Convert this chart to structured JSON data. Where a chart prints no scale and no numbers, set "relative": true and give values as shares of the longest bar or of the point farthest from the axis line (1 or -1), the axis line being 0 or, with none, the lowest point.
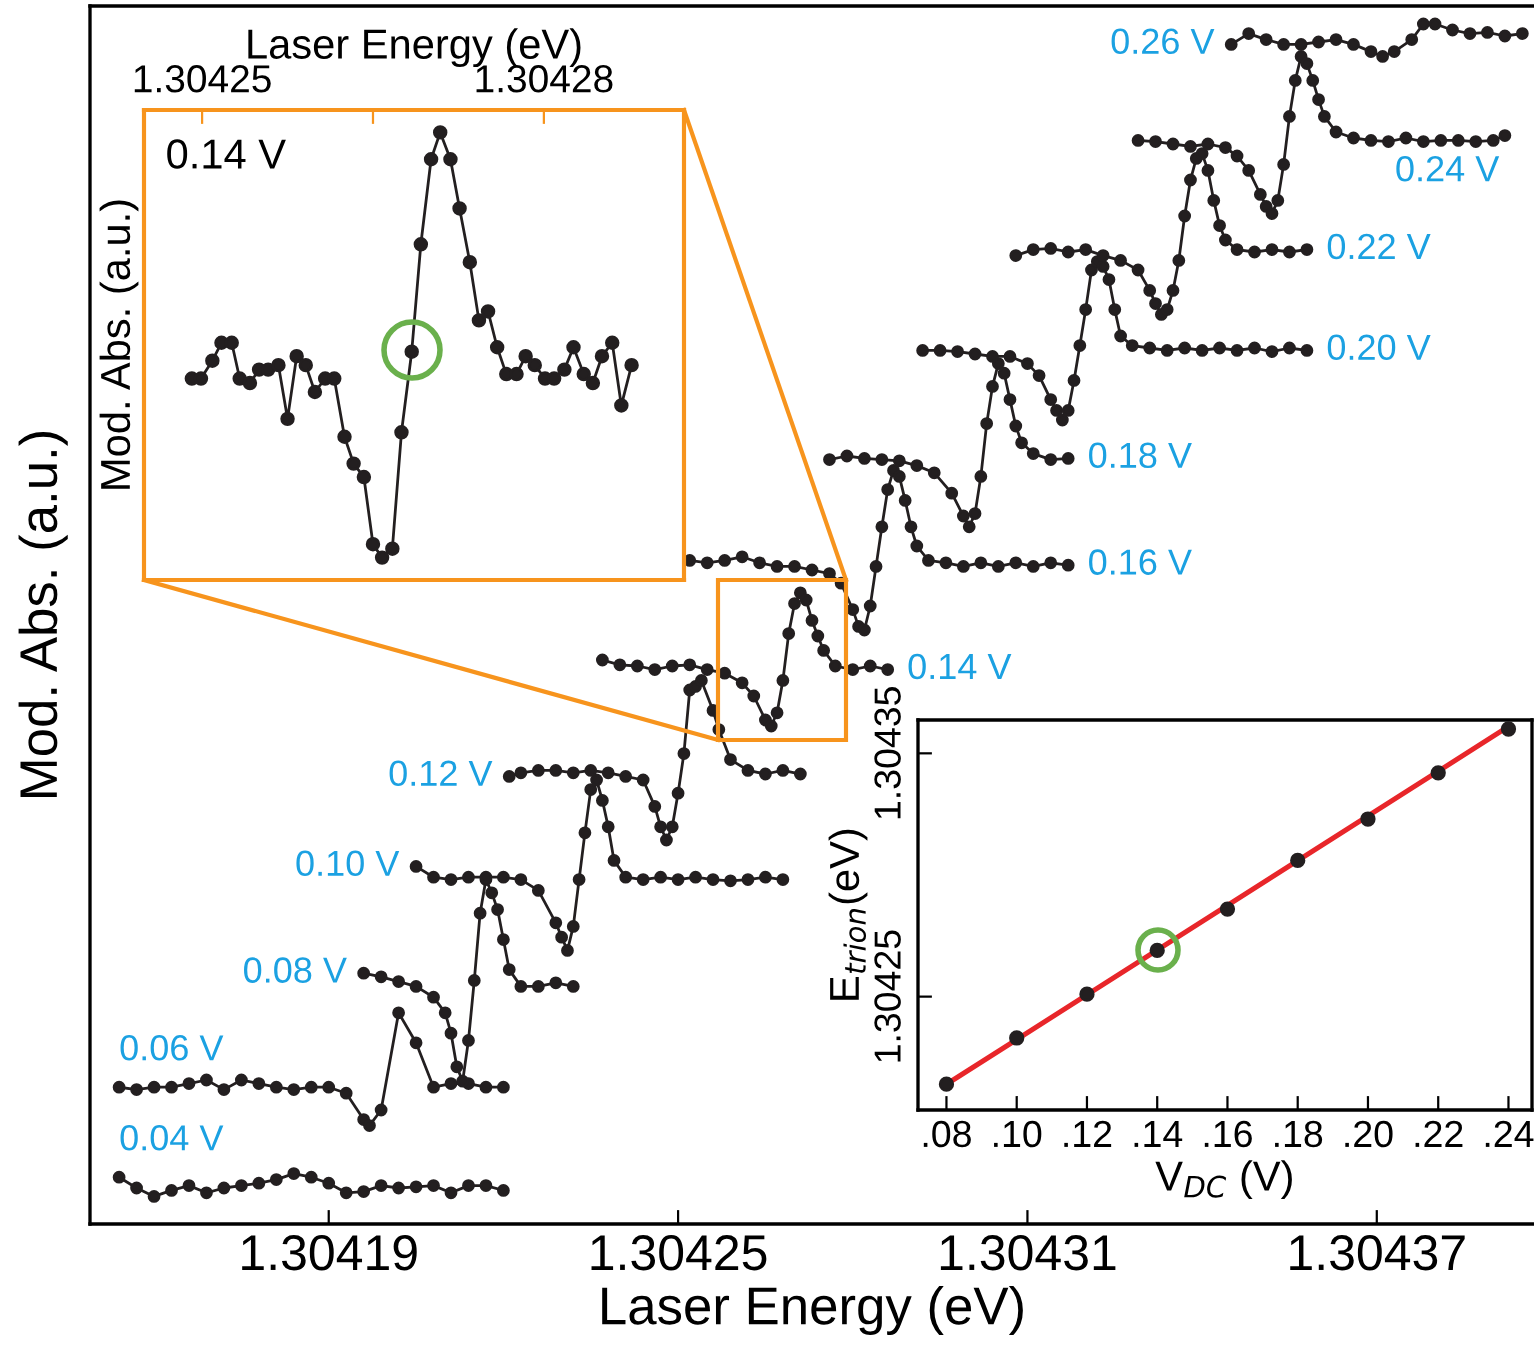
{
  "chart_data": [
    {
      "type": "line",
      "xlabel": "Laser Energy (eV)",
      "ylabel": "Mod. Abs. (a.u.)",
      "xlim": [
        1.304149,
        1.304397
      ],
      "xticks": [
        1.30419,
        1.30425,
        1.30431,
        1.30437
      ],
      "relative": true,
      "marker": "circle",
      "line_style": "solid",
      "tick_labels": "x",
      "series": [
        {
          "name": "0.04 V",
          "color": "#231f20",
          "x": [
            1.304154,
            1.304157,
            1.30416,
            1.304163,
            1.304166,
            1.304169,
            1.304172,
            1.304175,
            1.304178,
            1.304181,
            1.304184,
            1.304187,
            1.30419,
            1.304193,
            1.304196,
            1.304199,
            1.304202,
            1.304205,
            1.304208,
            1.304211,
            1.304214,
            1.304217,
            1.30422
          ],
          "values": [
            0.039,
            0.03,
            0.023,
            0.028,
            0.032,
            0.026,
            0.03,
            0.032,
            0.034,
            0.037,
            0.042,
            0.039,
            0.034,
            0.026,
            0.027,
            0.032,
            0.03,
            0.031,
            0.032,
            0.026,
            0.032,
            0.032,
            0.028
          ]
        },
        {
          "name": "0.06 V",
          "color": "#231f20",
          "x": [
            1.304154,
            1.304157,
            1.30416,
            1.304163,
            1.304166,
            1.304169,
            1.304172,
            1.304175,
            1.304178,
            1.304181,
            1.304184,
            1.304187,
            1.30419,
            1.304193,
            1.304196,
            1.304197,
            1.304199,
            1.304202,
            1.304205,
            1.304208,
            1.304211,
            1.304214,
            1.304217,
            1.30422
          ],
          "values": [
            0.114,
            0.112,
            0.114,
            0.114,
            0.117,
            0.12,
            0.112,
            0.12,
            0.117,
            0.114,
            0.112,
            0.114,
            0.114,
            0.109,
            0.087,
            0.082,
            0.095,
            0.176,
            0.151,
            0.114,
            0.117,
            0.117,
            0.114,
            0.114
          ]
        },
        {
          "name": "0.08 V",
          "color": "#231f20",
          "x": [
            1.304196,
            1.304199,
            1.304202,
            1.304205,
            1.304208,
            1.30421,
            1.304211,
            1.304212,
            1.304213,
            1.304214,
            1.304215,
            1.304216,
            1.304217,
            1.304218,
            1.304219,
            1.30422,
            1.304221,
            1.304223,
            1.304226,
            1.304229,
            1.304232
          ],
          "values": [
            0.209,
            0.206,
            0.202,
            0.198,
            0.189,
            0.176,
            0.159,
            0.131,
            0.119,
            0.153,
            0.203,
            0.259,
            0.287,
            0.276,
            0.262,
            0.237,
            0.212,
            0.198,
            0.198,
            0.201,
            0.198
          ]
        },
        {
          "name": "0.10 V",
          "color": "#231f20",
          "x": [
            1.304205,
            1.304208,
            1.304211,
            1.304214,
            1.304217,
            1.30422,
            1.304223,
            1.304226,
            1.304229,
            1.30423,
            1.304231,
            1.304232,
            1.304233,
            1.304234,
            1.304235,
            1.304236,
            1.304237,
            1.304238,
            1.304239,
            1.304241,
            1.304244,
            1.304247,
            1.30425,
            1.304253,
            1.304256,
            1.304259,
            1.304262,
            1.304265,
            1.304268
          ],
          "values": [
            0.298,
            0.289,
            0.287,
            0.289,
            0.289,
            0.289,
            0.287,
            0.278,
            0.251,
            0.239,
            0.228,
            0.248,
            0.287,
            0.326,
            0.362,
            0.37,
            0.353,
            0.331,
            0.303,
            0.289,
            0.287,
            0.289,
            0.287,
            0.289,
            0.287,
            0.286,
            0.287,
            0.289,
            0.287
          ]
        },
        {
          "name": "0.12 V",
          "color": "#231f20",
          "x": [
            1.304221,
            1.304223,
            1.304226,
            1.304229,
            1.304232,
            1.304235,
            1.304238,
            1.304241,
            1.304244,
            1.304246,
            1.304247,
            1.304248,
            1.304249,
            1.30425,
            1.304251,
            1.304252,
            1.304253,
            1.304254,
            1.304256,
            1.304257,
            1.304259,
            1.304262,
            1.304265,
            1.304268,
            1.304271
          ],
          "values": [
            0.373,
            0.376,
            0.378,
            0.378,
            0.376,
            0.378,
            0.376,
            0.373,
            0.37,
            0.348,
            0.331,
            0.32,
            0.331,
            0.359,
            0.392,
            0.445,
            0.448,
            0.453,
            0.428,
            0.412,
            0.387,
            0.378,
            0.375,
            0.378,
            0.375
          ]
        },
        {
          "name": "0.14 V",
          "color": "#231f20",
          "x": [
            1.304237,
            1.30424,
            1.304243,
            1.304246,
            1.304249,
            1.304252,
            1.304255,
            1.304258,
            1.304261,
            1.304263,
            1.304265,
            1.304266,
            1.304267,
            1.304268,
            1.304269,
            1.30427,
            1.304271,
            1.304272,
            1.304273,
            1.304274,
            1.304275,
            1.304277,
            1.30428,
            1.304283,
            1.304286
          ],
          "values": [
            0.47,
            0.466,
            0.465,
            0.462,
            0.465,
            0.466,
            0.462,
            0.459,
            0.451,
            0.44,
            0.42,
            0.415,
            0.426,
            0.453,
            0.492,
            0.517,
            0.526,
            0.52,
            0.503,
            0.49,
            0.478,
            0.465,
            0.462,
            0.465,
            0.462
          ]
        },
        {
          "name": "0.16 V",
          "color": "#231f20",
          "x": [
            1.304252,
            1.304255,
            1.304258,
            1.304261,
            1.304264,
            1.304267,
            1.30427,
            1.304273,
            1.304276,
            1.304278,
            1.30428,
            1.304281,
            1.304282,
            1.304283,
            1.304284,
            1.304285,
            1.304286,
            1.304287,
            1.304288,
            1.304289,
            1.30429,
            1.304291,
            1.304293,
            1.304296,
            1.304299,
            1.304302,
            1.304305,
            1.304308,
            1.304311,
            1.304314,
            1.304317
          ],
          "values": [
            0.553,
            0.551,
            0.553,
            0.556,
            0.551,
            0.548,
            0.548,
            0.545,
            0.542,
            0.534,
            0.512,
            0.498,
            0.495,
            0.515,
            0.548,
            0.581,
            0.612,
            0.628,
            0.623,
            0.603,
            0.581,
            0.565,
            0.553,
            0.551,
            0.548,
            0.551,
            0.548,
            0.551,
            0.548,
            0.551,
            0.549
          ]
        },
        {
          "name": "0.18 V",
          "color": "#231f20",
          "x": [
            1.304276,
            1.304279,
            1.304282,
            1.304285,
            1.304288,
            1.304291,
            1.304294,
            1.304297,
            1.304299,
            1.3043,
            1.304301,
            1.304302,
            1.304303,
            1.304304,
            1.304305,
            1.304306,
            1.304307,
            1.304308,
            1.304309,
            1.304311,
            1.304314,
            1.304317
          ],
          "values": [
            0.637,
            0.64,
            0.638,
            0.637,
            0.636,
            0.632,
            0.626,
            0.609,
            0.59,
            0.581,
            0.592,
            0.623,
            0.667,
            0.698,
            0.717,
            0.709,
            0.687,
            0.665,
            0.651,
            0.642,
            0.637,
            0.638
          ]
        },
        {
          "name": "0.20 V",
          "color": "#231f20",
          "x": [
            1.304292,
            1.304295,
            1.304298,
            1.304301,
            1.304304,
            1.304307,
            1.30431,
            1.304312,
            1.304314,
            1.304315,
            1.304316,
            1.304317,
            1.304318,
            1.304319,
            1.30432,
            1.304321,
            1.304322,
            1.304323,
            1.304324,
            1.304325,
            1.304326,
            1.304328,
            1.304331,
            1.304334,
            1.304337,
            1.30434,
            1.304343,
            1.304346,
            1.304349,
            1.304352,
            1.304355,
            1.304358
          ],
          "values": [
            0.728,
            0.728,
            0.727,
            0.725,
            0.723,
            0.723,
            0.717,
            0.707,
            0.687,
            0.678,
            0.67,
            0.678,
            0.703,
            0.732,
            0.762,
            0.795,
            0.802,
            0.798,
            0.787,
            0.762,
            0.74,
            0.732,
            0.73,
            0.728,
            0.73,
            0.728,
            0.73,
            0.728,
            0.73,
            0.727,
            0.73,
            0.728
          ]
        },
        {
          "name": "0.22 V",
          "color": "#231f20",
          "x": [
            1.304308,
            1.304311,
            1.304314,
            1.304317,
            1.30432,
            1.304323,
            1.304326,
            1.304329,
            1.304331,
            1.304332,
            1.304333,
            1.304334,
            1.304335,
            1.304336,
            1.304337,
            1.304338,
            1.304339,
            1.30434,
            1.304341,
            1.304342,
            1.304343,
            1.304344,
            1.304346,
            1.304349,
            1.304352,
            1.304355,
            1.304358
          ],
          "values": [
            0.807,
            0.812,
            0.813,
            0.81,
            0.812,
            0.807,
            0.803,
            0.795,
            0.778,
            0.767,
            0.758,
            0.762,
            0.778,
            0.803,
            0.84,
            0.87,
            0.888,
            0.892,
            0.878,
            0.853,
            0.832,
            0.82,
            0.812,
            0.81,
            0.812,
            0.81,
            0.812
          ]
        },
        {
          "name": "0.24 V",
          "color": "#231f20",
          "x": [
            1.304329,
            1.304332,
            1.304335,
            1.304338,
            1.304341,
            1.304344,
            1.304346,
            1.304348,
            1.30435,
            1.304351,
            1.304352,
            1.304353,
            1.304354,
            1.304355,
            1.304356,
            1.304357,
            1.304358,
            1.304359,
            1.30436,
            1.304361,
            1.304363,
            1.304366,
            1.304369,
            1.304372,
            1.304375,
            1.304378,
            1.304381,
            1.304384,
            1.304387,
            1.30439,
            1.304392
          ],
          "values": [
            0.903,
            0.902,
            0.9,
            0.898,
            0.9,
            0.897,
            0.89,
            0.878,
            0.858,
            0.848,
            0.842,
            0.853,
            0.883,
            0.923,
            0.953,
            0.973,
            0.967,
            0.953,
            0.937,
            0.923,
            0.91,
            0.905,
            0.903,
            0.902,
            0.905,
            0.902,
            0.903,
            0.903,
            0.902,
            0.903,
            0.907
          ]
        },
        {
          "name": "0.26 V",
          "color": "#231f20",
          "x": [
            1.304345,
            1.304348,
            1.304351,
            1.304354,
            1.304357,
            1.30436,
            1.304363,
            1.304366,
            1.304369,
            1.304371,
            1.304373,
            1.304376,
            1.304378,
            1.30438,
            1.304383,
            1.304386,
            1.304389,
            1.304392,
            1.304395
          ],
          "values": [
            0.983,
            0.992,
            0.987,
            0.983,
            0.983,
            0.985,
            0.987,
            0.983,
            0.977,
            0.973,
            0.977,
            0.987,
            1.0,
            1.0,
            0.995,
            0.992,
            0.993,
            0.99,
            0.992
          ]
        }
      ]
    },
    {
      "type": "line",
      "xlabel": "Laser Energy (eV)",
      "ylabel": "Mod. Abs. (a.u.)",
      "xlim": [
        1.3042449,
        1.3042923
      ],
      "xticks": [
        1.30425,
        {
          "value": 1.304265,
          "label": null
        },
        1.30428
      ],
      "relative": true,
      "marker": "circle",
      "line_style": "solid",
      "tick_labels": "x",
      "annotations": [
        "0.14 V"
      ],
      "series": [
        {
          "color": "#231f20",
          "x": [
            1.3042491,
            1.3042499,
            1.3042509,
            1.3042517,
            1.3042526,
            1.3042533,
            1.3042542,
            1.304255,
            1.3042558,
            1.3042567,
            1.3042575,
            1.3042583,
            1.3042591,
            1.3042599,
            1.3042608,
            1.3042616,
            1.3042625,
            1.3042633,
            1.3042642,
            1.304265,
            1.3042658,
            1.3042667,
            1.3042675,
            1.3042684,
            1.3042692,
            1.3042701,
            1.3042709,
            1.3042718,
            1.3042726,
            1.3042735,
            1.3042743,
            1.3042751,
            1.3042759,
            1.3042767,
            1.3042776,
            1.3042784,
            1.3042792,
            1.3042801,
            1.3042809,
            1.3042818,
            1.3042826,
            1.3042835,
            1.3042843,
            1.3042851,
            1.304286,
            1.3042868,
            1.3042877
          ],
          "values": [
            0.45,
            0.45,
            0.49,
            0.53,
            0.53,
            0.45,
            0.44,
            0.47,
            0.47,
            0.48,
            0.36,
            0.5,
            0.48,
            0.42,
            0.45,
            0.45,
            0.32,
            0.26,
            0.23,
            0.08,
            0.05,
            0.07,
            0.33,
            0.51,
            0.75,
            0.94,
            1.0,
            0.94,
            0.83,
            0.71,
            0.58,
            0.6,
            0.52,
            0.46,
            0.46,
            0.5,
            0.48,
            0.45,
            0.45,
            0.47,
            0.52,
            0.46,
            0.44,
            0.5,
            0.53,
            0.39,
            0.48
          ]
        }
      ]
    },
    {
      "type": "scatter",
      "xlabel": "V$_{DC}$ (V)",
      "ylabel": "E$_{trion}$(eV)",
      "xlim": [
        0.0719,
        0.2467
      ],
      "xticks": [
        {
          "value": 0.08,
          "label": ".08"
        },
        {
          "value": 0.1,
          "label": ".10"
        },
        {
          "value": 0.12,
          "label": ".12"
        },
        {
          "value": 0.14,
          "label": ".14"
        },
        {
          "value": 0.16,
          "label": ".16"
        },
        {
          "value": 0.18,
          "label": ".18"
        },
        {
          "value": 0.2,
          "label": ".20"
        },
        {
          "value": 0.22,
          "label": ".22"
        },
        {
          "value": 0.24,
          "label": ".24"
        }
      ],
      "ylim": [
        1.3042034,
        1.3043637
      ],
      "yticks": [
        1.30425,
        1.30435
      ],
      "marker": "circle",
      "series": [
        {
          "type": "scatter",
          "color": "#231f20",
          "x": [
            0.08,
            0.1,
            0.12,
            0.14,
            0.16,
            0.18,
            0.2,
            0.22,
            0.24
          ],
          "values": [
            1.304214,
            1.304233,
            1.304251,
            1.304269,
            1.304286,
            1.304306,
            1.304323,
            1.304342,
            1.30436
          ]
        },
        {
          "type": "line",
          "color": "#e8262a",
          "marker": "none",
          "x": [
            0.08,
            0.24
          ],
          "values": [
            1.304214,
            1.304361
          ]
        }
      ]
    }
  ]
}
